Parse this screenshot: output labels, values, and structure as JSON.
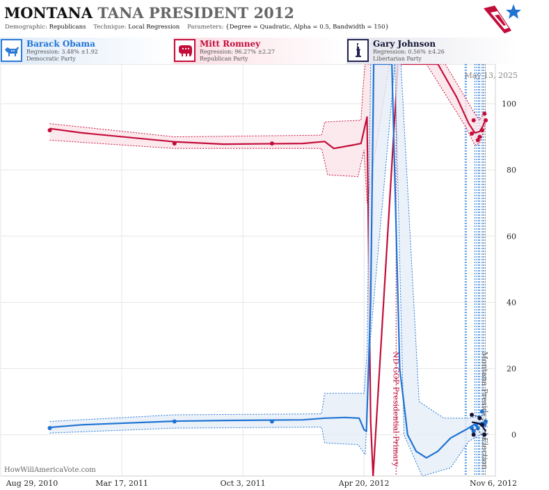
{
  "header": {
    "state": "MONTANA",
    "title_rest": "TANA PRESIDENT 2012",
    "demographic_label": "Demographic:",
    "demographic_value": "Republicans",
    "technique_label": "Technique:",
    "technique_value": "Local Regression",
    "parameters_label": "Parameters:",
    "parameters_value": "{Degree = Quadratic, Alpha = 0.5, Bandwidth = 150}"
  },
  "candidates": [
    {
      "name": "Barack Obama",
      "regression": "Regression: 3.48% ±1.92",
      "party": "Democratic Party",
      "icon": "donkey-icon",
      "color": "#1e73d2"
    },
    {
      "name": "Mitt Romney",
      "regression": "Regression: 96.27% ±2.27",
      "party": "Republican Party",
      "icon": "elephant-icon",
      "color": "#c20d3a"
    },
    {
      "name": "Gary Johnson",
      "regression": "Regression: 0.56% ±4.26",
      "party": "Libertarian Party",
      "icon": "statue-of-liberty-icon",
      "color": "#111133"
    }
  ],
  "chart_data": {
    "type": "line",
    "date_stamp": "May 13, 2025",
    "watermark": "HowWillAmericaVote.com",
    "x_ticks": [
      "Aug 29, 2010",
      "Mar 17, 2011",
      "Oct 3, 2011",
      "Apr 20, 2012",
      "Nov 6, 2012"
    ],
    "xlim": [
      "2010-08-29",
      "2012-11-23"
    ],
    "ylim": [
      -12.5,
      112
    ],
    "y_ticks": [
      0,
      20,
      40,
      60,
      80,
      100
    ],
    "grid": true,
    "events": [
      {
        "label": "ND GOP Presidential Primary",
        "date": "2012-06-12",
        "color": "#c20d3a"
      },
      {
        "label": "Montana Presidential Election",
        "date": "2012-11-06",
        "color": "#666666"
      }
    ],
    "poll_dates": [
      "2012-10-04",
      "2012-10-06",
      "2012-10-20",
      "2012-10-23",
      "2012-10-26",
      "2012-10-28",
      "2012-11-01",
      "2012-11-03"
    ],
    "series": [
      {
        "name": "Mitt Romney",
        "color": "#c20d3a",
        "band_color": "#fbe3e9",
        "points": [
          [
            "2010-11-18",
            92
          ],
          [
            "2011-06-12",
            88
          ],
          [
            "2011-11-20",
            88
          ],
          [
            "2012-10-15",
            91
          ],
          [
            "2012-10-18",
            95
          ],
          [
            "2012-10-25",
            89
          ],
          [
            "2012-10-28",
            90
          ],
          [
            "2012-11-01",
            92
          ],
          [
            "2012-11-05",
            97
          ],
          [
            "2012-11-07",
            95
          ]
        ],
        "line": [
          [
            "2010-11-18",
            92.5
          ],
          [
            "2011-01-10",
            91.2
          ],
          [
            "2011-06-12",
            88.5
          ],
          [
            "2011-09-01",
            87.8
          ],
          [
            "2012-01-10",
            88.0
          ],
          [
            "2012-02-15",
            88.6
          ],
          [
            "2012-03-01",
            86.5
          ],
          [
            "2012-04-01",
            87.5
          ],
          [
            "2012-04-15",
            88.0
          ],
          [
            "2012-04-25",
            96.0
          ],
          [
            "2012-05-01",
            4.0
          ],
          [
            "2012-05-05",
            -12.5
          ],
          [
            "2012-06-15",
            112
          ],
          [
            "2012-08-20",
            112
          ],
          [
            "2012-09-20",
            102
          ],
          [
            "2012-10-10",
            94
          ],
          [
            "2012-10-20",
            91.2
          ],
          [
            "2012-10-28",
            91.6
          ],
          [
            "2012-11-03",
            93.5
          ],
          [
            "2012-11-07",
            95.5
          ]
        ],
        "upper": [
          [
            "2010-11-18",
            94
          ],
          [
            "2011-06-12",
            90
          ],
          [
            "2012-02-10",
            90.5
          ],
          [
            "2012-02-15",
            94.5
          ],
          [
            "2012-04-15",
            95
          ],
          [
            "2012-04-18",
            104
          ],
          [
            "2012-04-22",
            112
          ],
          [
            "2012-09-01",
            112
          ],
          [
            "2012-10-20",
            97
          ],
          [
            "2012-10-28",
            95
          ],
          [
            "2012-11-07",
            98
          ]
        ],
        "lower": [
          [
            "2010-11-18",
            89
          ],
          [
            "2011-06-12",
            86.5
          ],
          [
            "2012-02-10",
            86.5
          ],
          [
            "2012-02-20",
            78.5
          ],
          [
            "2012-04-10",
            78
          ],
          [
            "2012-04-20",
            86
          ],
          [
            "2012-04-25",
            70
          ],
          [
            "2012-06-01",
            112
          ],
          [
            "2012-08-01",
            112
          ],
          [
            "2012-10-05",
            93
          ],
          [
            "2012-10-20",
            87.5
          ],
          [
            "2012-10-28",
            88
          ],
          [
            "2012-11-07",
            94
          ]
        ]
      },
      {
        "name": "Barack Obama",
        "color": "#1e73d2",
        "band_color": "#e6eef8",
        "points": [
          [
            "2010-11-18",
            2
          ],
          [
            "2011-06-12",
            4
          ],
          [
            "2011-11-20",
            4
          ],
          [
            "2012-10-15",
            2
          ],
          [
            "2012-10-18",
            1
          ],
          [
            "2012-10-22",
            3
          ],
          [
            "2012-10-25",
            2
          ],
          [
            "2012-10-28",
            5
          ],
          [
            "2012-11-01",
            7
          ],
          [
            "2012-11-05",
            3
          ],
          [
            "2012-11-07",
            4
          ]
        ],
        "line": [
          [
            "2010-11-18",
            2.2
          ],
          [
            "2011-01-10",
            3.0
          ],
          [
            "2011-06-12",
            4.1
          ],
          [
            "2011-09-01",
            4.3
          ],
          [
            "2012-01-10",
            4.5
          ],
          [
            "2012-02-15",
            5.0
          ],
          [
            "2012-03-20",
            5.2
          ],
          [
            "2012-04-12",
            5.0
          ],
          [
            "2012-04-20",
            1.5
          ],
          [
            "2012-04-24",
            1.0
          ],
          [
            "2012-05-01",
            40
          ],
          [
            "2012-05-06",
            112
          ],
          [
            "2012-06-05",
            112
          ],
          [
            "2012-06-18",
            20
          ],
          [
            "2012-07-01",
            0
          ],
          [
            "2012-07-15",
            -5
          ],
          [
            "2012-08-01",
            -7
          ],
          [
            "2012-08-20",
            -5
          ],
          [
            "2012-09-10",
            -1
          ],
          [
            "2012-10-05",
            1.5
          ],
          [
            "2012-10-20",
            3.2
          ],
          [
            "2012-10-28",
            3.5
          ],
          [
            "2012-11-07",
            3.8
          ]
        ],
        "upper": [
          [
            "2010-11-18",
            4
          ],
          [
            "2011-06-12",
            6
          ],
          [
            "2012-02-10",
            6.3
          ],
          [
            "2012-02-15",
            12.5
          ],
          [
            "2012-04-20",
            12.5
          ],
          [
            "2012-04-25",
            25
          ],
          [
            "2012-05-01",
            112
          ],
          [
            "2012-06-20",
            112
          ],
          [
            "2012-07-20",
            10
          ],
          [
            "2012-08-30",
            5
          ],
          [
            "2012-10-10",
            5
          ],
          [
            "2012-11-07",
            6
          ]
        ],
        "lower": [
          [
            "2010-11-18",
            0.5
          ],
          [
            "2011-06-12",
            2
          ],
          [
            "2012-02-10",
            2.3
          ],
          [
            "2012-02-15",
            -2.5
          ],
          [
            "2012-04-10",
            -3
          ],
          [
            "2012-04-22",
            -6
          ],
          [
            "2012-05-01",
            30
          ],
          [
            "2012-06-10",
            112
          ],
          [
            "2012-06-25",
            0
          ],
          [
            "2012-07-25",
            -12.5
          ],
          [
            "2012-09-10",
            -10
          ],
          [
            "2012-10-10",
            -2
          ],
          [
            "2012-11-07",
            1
          ]
        ]
      },
      {
        "name": "Gary Johnson",
        "color": "#111133",
        "band_color": "none",
        "points": [
          [
            "2012-10-15",
            6
          ],
          [
            "2012-10-18",
            0
          ],
          [
            "2012-10-28",
            5
          ],
          [
            "2012-11-01",
            3
          ],
          [
            "2012-11-05",
            0
          ]
        ],
        "line": [
          [
            "2012-10-15",
            3.8
          ],
          [
            "2012-10-25",
            3.5
          ],
          [
            "2012-11-01",
            2.7
          ],
          [
            "2012-11-07",
            1.0
          ]
        ],
        "upper": [
          [
            "2012-10-15",
            6
          ],
          [
            "2012-10-25",
            5.5
          ],
          [
            "2012-11-07",
            4
          ]
        ],
        "lower": [
          [
            "2012-10-15",
            1.5
          ],
          [
            "2012-10-25",
            1.5
          ],
          [
            "2012-11-07",
            -1.5
          ]
        ]
      }
    ]
  }
}
